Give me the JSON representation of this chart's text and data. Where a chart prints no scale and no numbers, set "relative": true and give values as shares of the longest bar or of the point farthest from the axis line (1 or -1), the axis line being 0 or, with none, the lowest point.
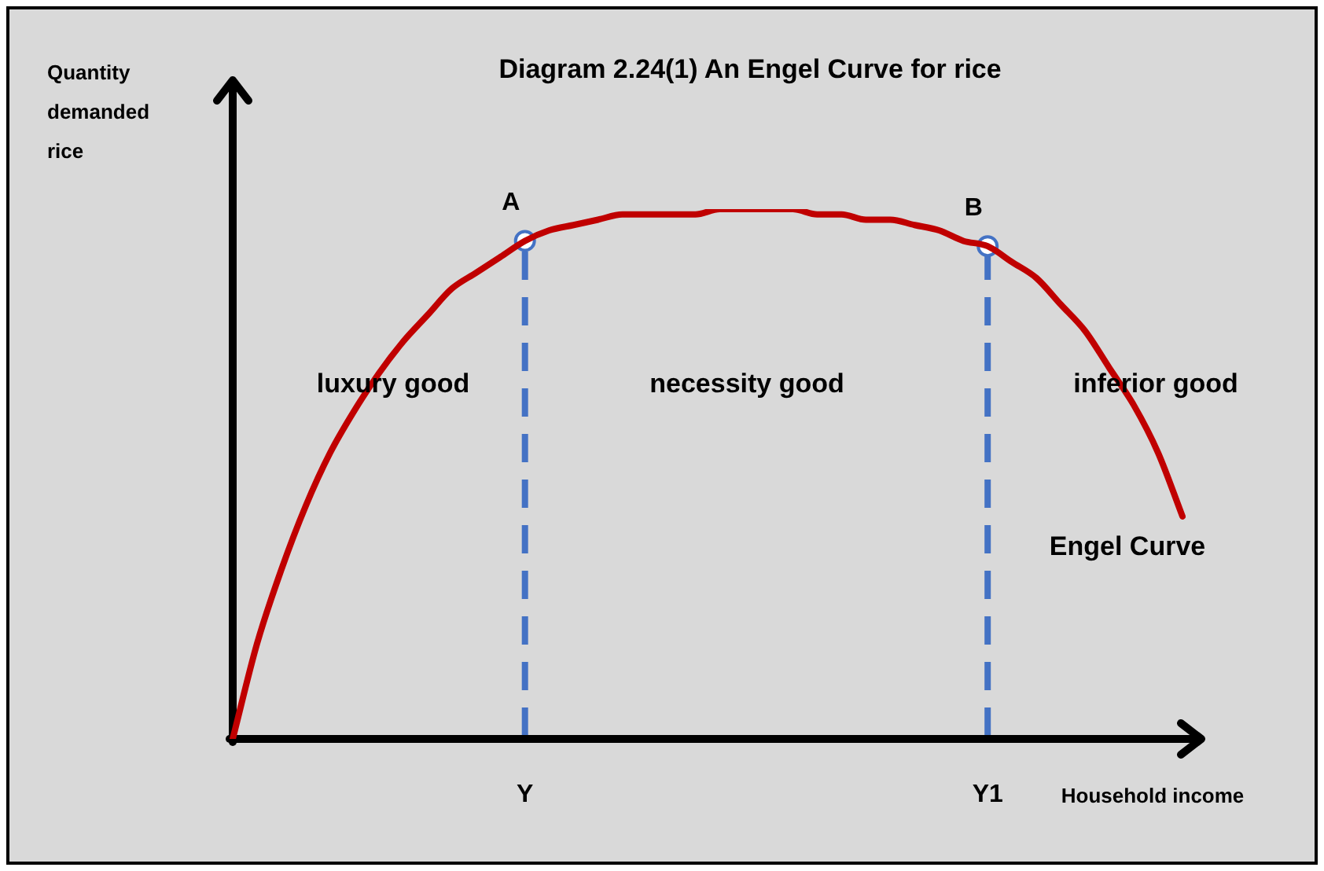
{
  "chart_data": {
    "type": "line",
    "title": "Diagram 2.24(1) An Engel Curve for rice",
    "xlabel": "Household income",
    "ylabel": "Quantity demanded rice",
    "relative": true,
    "categories": [
      null,
      null,
      null,
      null,
      null,
      null,
      null,
      null,
      null,
      null,
      null,
      null,
      "Y",
      null,
      null,
      null,
      null,
      null,
      null,
      null,
      null,
      null,
      null,
      null,
      null,
      null,
      null,
      null,
      null,
      null,
      null,
      "Y1",
      null,
      null,
      null,
      null,
      null,
      null,
      null,
      null
    ],
    "series": [
      {
        "name": "Engel Curve",
        "color": "#c00000",
        "marker": "none",
        "values": [
          0,
          0.18,
          0.32,
          0.44,
          0.54,
          0.62,
          0.69,
          0.75,
          0.8,
          0.85,
          0.88,
          0.91,
          0.94,
          0.96,
          0.97,
          0.98,
          0.99,
          0.99,
          0.99,
          0.99,
          1,
          1,
          1,
          1,
          0.99,
          0.99,
          0.98,
          0.98,
          0.97,
          0.96,
          0.94,
          0.93,
          0.9,
          0.87,
          0.82,
          0.77,
          0.7,
          0.63,
          0.54,
          0.42
        ]
      },
      {
        "type": "scatter",
        "color": "#4472c4",
        "marker": "circle",
        "x": [
          "Y",
          "Y1"
        ],
        "values": [
          0.94,
          0.93
        ]
      }
    ],
    "ref_lines": [
      {
        "axis": "x",
        "value": "Y",
        "color": "#4472c4",
        "line_style": "dashed"
      },
      {
        "axis": "x",
        "value": "Y1",
        "color": "#4472c4",
        "line_style": "dashed"
      }
    ],
    "annotations": [
      {
        "text": "A",
        "x": "Y",
        "y": 0.94
      },
      {
        "text": "B",
        "x": "Y1",
        "y": 0.93
      },
      "luxury good",
      "necessity good",
      "inferior good"
    ]
  }
}
